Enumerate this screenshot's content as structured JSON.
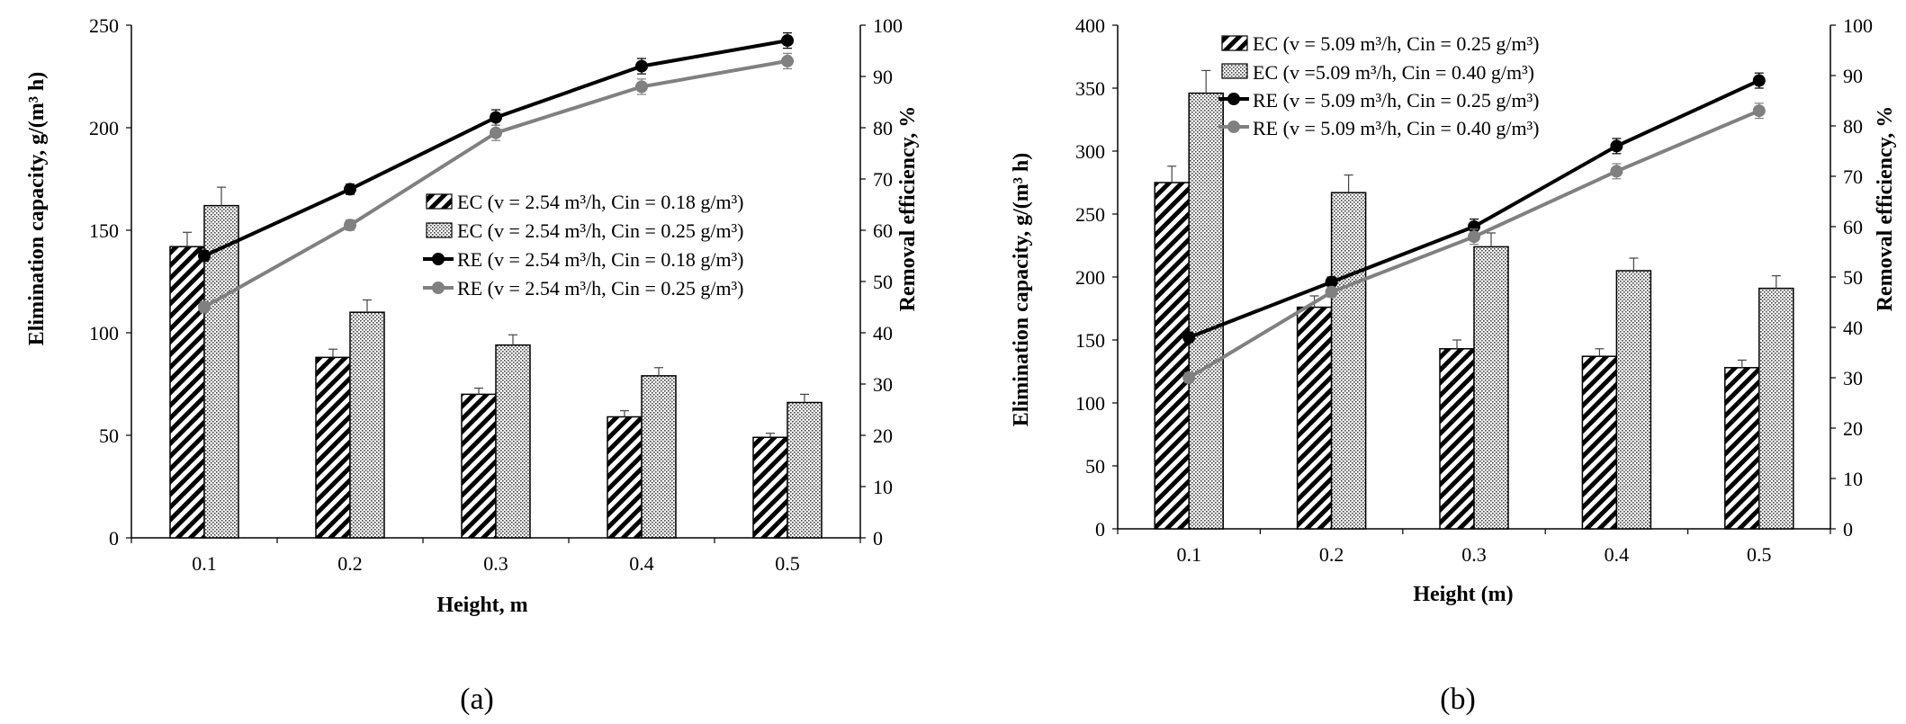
{
  "chart_data": [
    {
      "type": "bar",
      "panel_label": "(a)",
      "title": "",
      "categories": [
        "0.1",
        "0.2",
        "0.3",
        "0.4",
        "0.5"
      ],
      "xlabel": "Height, m",
      "ylabel": "Elimination  capacity, g/(m³ h)",
      "y2label": "Removal efficiency, %",
      "ylim": [
        0,
        250
      ],
      "yticks": [
        0,
        50,
        100,
        150,
        200,
        250
      ],
      "y2lim": [
        0,
        100
      ],
      "y2ticks": [
        0,
        10,
        20,
        30,
        40,
        50,
        60,
        70,
        80,
        90,
        100
      ],
      "legend_position": "center-right",
      "series": [
        {
          "name": "EC (v = 2.54 m³/h, Cin = 0.18 g/m³)",
          "kind": "bar",
          "pattern": "hatch",
          "values": [
            142,
            88,
            70,
            59,
            49
          ],
          "errors": [
            7,
            4,
            3,
            3,
            2
          ]
        },
        {
          "name": "EC (v = 2.54 m³/h, Cin = 0.25 g/m³)",
          "kind": "bar",
          "pattern": "dots",
          "values": [
            162,
            110,
            94,
            79,
            66
          ],
          "errors": [
            9,
            6,
            5,
            4,
            4
          ]
        },
        {
          "name": "RE (v = 2.54 m³/h, Cin = 0.18 g/m³)",
          "kind": "line",
          "axis": "y2",
          "color": "#000000",
          "values": [
            55,
            68,
            82,
            92,
            97
          ],
          "errors": [
            1,
            1,
            1.5,
            1.5,
            1.5
          ]
        },
        {
          "name": "RE (v = 2.54 m³/h, Cin = 0.25 g/m³)",
          "kind": "line",
          "axis": "y2",
          "color": "#808080",
          "values": [
            45,
            61,
            79,
            88,
            93
          ],
          "errors": [
            1,
            1,
            1.5,
            1.5,
            1.5
          ]
        }
      ]
    },
    {
      "type": "bar",
      "panel_label": "(b)",
      "title": "",
      "categories": [
        "0.1",
        "0.2",
        "0.3",
        "0.4",
        "0.5"
      ],
      "xlabel": "Height (m)",
      "ylabel": "Elimination  capacity, g/(m³ h)",
      "y2label": "Removal efficiency, %",
      "ylim": [
        0,
        400
      ],
      "yticks": [
        0,
        50,
        100,
        150,
        200,
        250,
        300,
        350,
        400
      ],
      "y2lim": [
        0,
        100
      ],
      "y2ticks": [
        0,
        10,
        20,
        30,
        40,
        50,
        60,
        70,
        80,
        90,
        100
      ],
      "legend_position": "top-center",
      "series": [
        {
          "name": "EC (v = 5.09 m³/h, Cin = 0.25 g/m³)",
          "kind": "bar",
          "pattern": "hatch",
          "values": [
            275,
            176,
            143,
            137,
            128
          ],
          "errors": [
            13,
            9,
            7,
            6,
            6
          ]
        },
        {
          "name": "EC (v =5.09 m³/h, Cin = 0.40 g/m³)",
          "kind": "bar",
          "pattern": "dots",
          "values": [
            346,
            267,
            224,
            205,
            191
          ],
          "errors": [
            18,
            14,
            11,
            10,
            10
          ]
        },
        {
          "name": "RE (v = 5.09 m³/h, Cin = 0.25 g/m³)",
          "kind": "line",
          "axis": "y2",
          "color": "#000000",
          "values": [
            38,
            49,
            60,
            76,
            89
          ],
          "errors": [
            1,
            1,
            1.5,
            1.5,
            1.5
          ]
        },
        {
          "name": "RE (v = 5.09 m³/h, Cin = 0.40 g/m³)",
          "kind": "line",
          "axis": "y2",
          "color": "#808080",
          "values": [
            30,
            47,
            58,
            71,
            83
          ],
          "errors": [
            1,
            1,
            1.5,
            1.5,
            1.5
          ]
        }
      ]
    }
  ]
}
